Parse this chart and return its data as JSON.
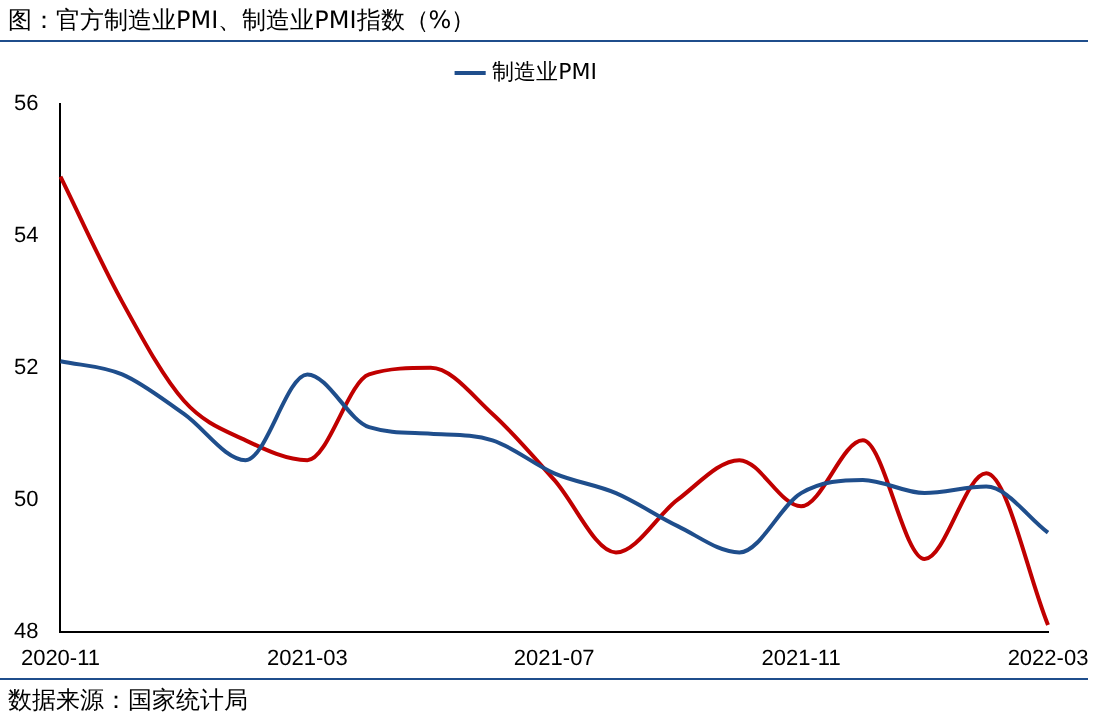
{
  "chart_data": {
    "type": "line",
    "title": "图：官方制造业PMI、制造业PMI指数（%）",
    "categories": [
      "2020-11",
      null,
      null,
      null,
      "2021-03",
      null,
      null,
      null,
      "2021-07",
      null,
      null,
      null,
      "2021-11",
      null,
      null,
      null,
      "2022-03"
    ],
    "series": [
      {
        "name": "制造业PMI",
        "color": "#1f4e8c",
        "values": [
          52.1,
          51.9,
          51.3,
          50.6,
          51.9,
          51.1,
          51.0,
          50.9,
          50.4,
          50.1,
          49.6,
          49.2,
          50.1,
          50.3,
          50.1,
          50.2,
          49.5
        ]
      },
      {
        "color": "#c00000",
        "values": [
          54.9,
          53.0,
          51.5,
          50.9,
          50.6,
          51.9,
          52.0,
          51.3,
          50.3,
          49.2,
          50.0,
          50.6,
          49.9,
          50.9,
          49.1,
          50.4,
          48.1
        ]
      }
    ],
    "ylim": [
      48,
      56
    ],
    "yticks": [
      48,
      50,
      52,
      54,
      56
    ],
    "legend": "top",
    "marker": "none",
    "line_style": "solid",
    "annotations": [
      "数据来源：国家统计局"
    ]
  }
}
